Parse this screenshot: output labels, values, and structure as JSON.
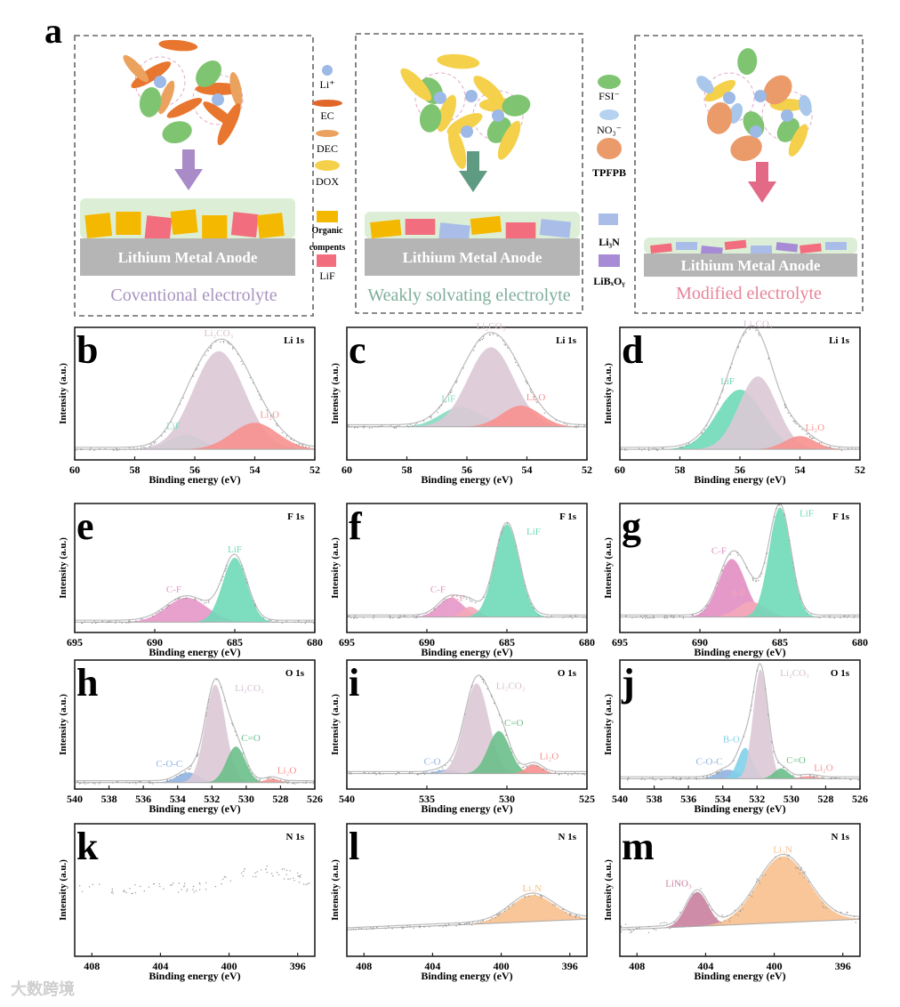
{
  "panel_a": {
    "letter": "a",
    "anode_label": "Lithium Metal Anode",
    "captions": [
      "Coventional electrolyte",
      "Weakly solvating electrolyte",
      "Modified electrolyte"
    ],
    "caption_colors": [
      "#a893c0",
      "#7fae9a",
      "#e8839a"
    ],
    "arrow_colors": [
      "#a98bc7",
      "#5f9a82",
      "#e26a86"
    ],
    "legend_left": [
      "Li⁺",
      "EC",
      "DEC",
      "DOX",
      "Organic",
      "compents",
      "LiF"
    ],
    "legend_right": [
      "FSI⁻",
      "NO₃⁻",
      "TPFPB",
      "Li₃N",
      "LiBₓOᵧ"
    ]
  },
  "watermark": "大数跨境",
  "chart_data": [
    {
      "letter": "b",
      "type": "area",
      "title": "Li 1s",
      "xlabel": "Binding energy (eV)",
      "ylabel": "Intensity (a.u.)",
      "xlim": [
        60,
        52
      ],
      "xticks": [
        60,
        58,
        56,
        54,
        52
      ],
      "baseline": 0.08,
      "components": [
        {
          "name": "LiF",
          "center": 56.3,
          "height": 0.11,
          "fwhm": 1.3,
          "color": "#86dcc3"
        },
        {
          "name": "Li₂CO₃",
          "center": 55.2,
          "height": 0.74,
          "fwhm": 2.0,
          "color": "#dcc9d6"
        },
        {
          "name": "Li₂O",
          "center": 54.0,
          "height": 0.2,
          "fwhm": 1.8,
          "color": "#f7918f"
        }
      ]
    },
    {
      "letter": "c",
      "type": "area",
      "title": "Li 1s",
      "xlabel": "Binding energy (eV)",
      "ylabel": "Intensity (a.u.)",
      "xlim": [
        60,
        52
      ],
      "xticks": [
        60,
        58,
        56,
        54,
        52
      ],
      "baseline": 0.25,
      "components": [
        {
          "name": "LiF",
          "center": 56.2,
          "height": 0.15,
          "fwhm": 1.6,
          "color": "#86dcc3"
        },
        {
          "name": "Li₂CO₃",
          "center": 55.2,
          "height": 0.6,
          "fwhm": 1.8,
          "color": "#dcc9d6"
        },
        {
          "name": "Li₂O",
          "center": 54.2,
          "height": 0.16,
          "fwhm": 1.5,
          "color": "#f7918f"
        }
      ]
    },
    {
      "letter": "d",
      "type": "area",
      "title": "Li 1s",
      "xlabel": "Binding energy (eV)",
      "ylabel": "Intensity (a.u.)",
      "xlim": [
        60,
        52
      ],
      "xticks": [
        60,
        58,
        56,
        54,
        52
      ],
      "baseline": 0.08,
      "components": [
        {
          "name": "LiF",
          "center": 56.0,
          "height": 0.45,
          "fwhm": 1.8,
          "color": "#6fd9b8"
        },
        {
          "name": "Li₂CO₃",
          "center": 55.4,
          "height": 0.55,
          "fwhm": 1.5,
          "color": "#dcc9d6"
        },
        {
          "name": "Li₂O",
          "center": 54.0,
          "height": 0.1,
          "fwhm": 1.2,
          "color": "#f7918f"
        }
      ]
    },
    {
      "letter": "e",
      "type": "area",
      "title": "F 1s",
      "xlabel": "Binding energy (eV)",
      "ylabel": "Intensity (a.u.)",
      "xlim": [
        695,
        680
      ],
      "xticks": [
        695,
        690,
        685,
        680
      ],
      "baseline": 0.08,
      "components": [
        {
          "name": "C-F",
          "center": 688.0,
          "height": 0.19,
          "fwhm": 3.0,
          "color": "#e596c6"
        },
        {
          "name": "LiF",
          "center": 685.0,
          "height": 0.5,
          "fwhm": 1.8,
          "color": "#6fd9b8"
        }
      ]
    },
    {
      "letter": "f",
      "type": "area",
      "title": "F 1s",
      "xlabel": "Binding energy (eV)",
      "ylabel": "Intensity (a.u.)",
      "xlim": [
        695,
        680
      ],
      "xticks": [
        695,
        690,
        685,
        680
      ],
      "baseline": 0.12,
      "components": [
        {
          "name": "C-F",
          "center": 688.5,
          "height": 0.15,
          "fwhm": 1.8,
          "color": "#e596c6"
        },
        {
          "name": "S-F",
          "center": 687.3,
          "height": 0.08,
          "fwhm": 1.2,
          "color": "#f3a8b8"
        },
        {
          "name": "LiF",
          "center": 685.0,
          "height": 0.72,
          "fwhm": 1.8,
          "color": "#6fd9b8"
        }
      ]
    },
    {
      "letter": "g",
      "type": "area",
      "title": "F 1s",
      "xlabel": "Binding energy (eV)",
      "ylabel": "Intensity (a.u.)",
      "xlim": [
        695,
        680
      ],
      "xticks": [
        695,
        690,
        685,
        680
      ],
      "baseline": 0.12,
      "components": [
        {
          "name": "C-F",
          "center": 688.0,
          "height": 0.45,
          "fwhm": 2.0,
          "color": "#e28ec2"
        },
        {
          "name": "S-F",
          "center": 686.8,
          "height": 0.12,
          "fwhm": 2.0,
          "color": "#f3a8b8"
        },
        {
          "name": "LiF",
          "center": 685.0,
          "height": 0.85,
          "fwhm": 1.6,
          "color": "#6fd9b8"
        }
      ]
    },
    {
      "letter": "h",
      "type": "area",
      "title": "O 1s",
      "xlabel": "Binding energy (eV)",
      "ylabel": "Intensity (a.u.)",
      "xlim": [
        540,
        526
      ],
      "xticks": [
        540,
        538,
        536,
        534,
        532,
        530,
        528,
        526
      ],
      "baseline": 0.05,
      "components": [
        {
          "name": "C-O-C",
          "center": 533.4,
          "height": 0.08,
          "fwhm": 1.5,
          "color": "#8fb3e0"
        },
        {
          "name": "Li₂CO₃",
          "center": 531.8,
          "height": 0.76,
          "fwhm": 1.4,
          "color": "#dcc9d6"
        },
        {
          "name": "C=O",
          "center": 530.6,
          "height": 0.28,
          "fwhm": 1.3,
          "color": "#6cbf8a"
        },
        {
          "name": "Li₂O",
          "center": 528.5,
          "height": 0.03,
          "fwhm": 1.0,
          "color": "#f7918f"
        }
      ]
    },
    {
      "letter": "i",
      "type": "area",
      "title": "O 1s",
      "xlabel": "Binding energy (eV)",
      "ylabel": "Intensity (a.u.)",
      "xlim": [
        540,
        525
      ],
      "xticks": [
        540,
        535,
        530,
        525
      ],
      "baseline": 0.12,
      "components": [
        {
          "name": "C-O",
          "center": 533.8,
          "height": 0.03,
          "fwhm": 1.5,
          "color": "#8fb3e0"
        },
        {
          "name": "Li₂CO₃",
          "center": 531.9,
          "height": 0.7,
          "fwhm": 1.8,
          "color": "#dcc9d6"
        },
        {
          "name": "C=O",
          "center": 530.5,
          "height": 0.33,
          "fwhm": 1.6,
          "color": "#6cbf8a"
        },
        {
          "name": "Li₂O",
          "center": 528.3,
          "height": 0.07,
          "fwhm": 1.2,
          "color": "#f7918f"
        }
      ]
    },
    {
      "letter": "j",
      "type": "area",
      "title": "O 1s",
      "xlabel": "Binding energy (eV)",
      "ylabel": "Intensity (a.u.)",
      "xlim": [
        540,
        526
      ],
      "xticks": [
        540,
        538,
        536,
        534,
        532,
        530,
        528,
        526
      ],
      "baseline": 0.08,
      "components": [
        {
          "name": "C-O-C",
          "center": 533.7,
          "height": 0.07,
          "fwhm": 1.5,
          "color": "#8fb3e0"
        },
        {
          "name": "B-O",
          "center": 532.7,
          "height": 0.24,
          "fwhm": 1.0,
          "color": "#80d0e8"
        },
        {
          "name": "Li₂CO₃",
          "center": 531.8,
          "height": 0.85,
          "fwhm": 1.0,
          "color": "#dcc9d6"
        },
        {
          "name": "C=O",
          "center": 530.6,
          "height": 0.08,
          "fwhm": 1.0,
          "color": "#6cbf8a"
        },
        {
          "name": "Li₂O",
          "center": 529.0,
          "height": 0.02,
          "fwhm": 1.2,
          "color": "#f7918f"
        }
      ]
    },
    {
      "letter": "k",
      "type": "scatter",
      "title": "N 1s",
      "xlabel": "Binding energy (eV)",
      "ylabel": "Intensity (a.u.)",
      "xlim": [
        409,
        395
      ],
      "xticks": [
        408,
        404,
        400,
        396
      ],
      "baseline": 0.55,
      "components": []
    },
    {
      "letter": "l",
      "type": "area",
      "title": "N 1s",
      "xlabel": "Binding energy (eV)",
      "ylabel": "Intensity (a.u.)",
      "xlim": [
        409,
        395
      ],
      "xticks": [
        408,
        404,
        400,
        396
      ],
      "baseline": 0.2,
      "components": [
        {
          "name": "Li₃N",
          "center": 398.2,
          "height": 0.2,
          "fwhm": 3.0,
          "color": "#f8c08e"
        }
      ]
    },
    {
      "letter": "m",
      "type": "area",
      "title": "N 1s",
      "xlabel": "Binding energy (eV)",
      "ylabel": "Intensity (a.u.)",
      "xlim": [
        409,
        395
      ],
      "xticks": [
        408,
        404,
        400,
        396
      ],
      "baseline": 0.2,
      "components": [
        {
          "name": "LiNO₃",
          "center": 404.5,
          "height": 0.26,
          "fwhm": 1.5,
          "color": "#c9809f"
        },
        {
          "name": "Li₃N",
          "center": 399.5,
          "height": 0.5,
          "fwhm": 3.5,
          "color": "#f8c08e"
        }
      ]
    }
  ]
}
